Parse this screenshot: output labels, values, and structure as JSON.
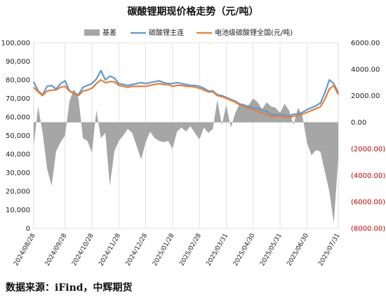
{
  "title": "碳酸锂期现价格走势（元/吨）",
  "source": "数据来源：iFind，中辉期货",
  "colors": {
    "basis": "#a6a6a6",
    "futures": "#5b9bd5",
    "spot": "#ed7d31",
    "negative_tick": "#c00000"
  },
  "chart_data": {
    "type": "line",
    "x": [
      "2024/08/28",
      "2024/09/02",
      "2024/09/06",
      "2024/09/11",
      "2024/09/16",
      "2024/09/21",
      "2024/09/26",
      "2024/09/28",
      "2024/10/03",
      "2024/10/08",
      "2024/10/13",
      "2024/10/18",
      "2024/10/23",
      "2024/10/28",
      "2024/11/02",
      "2024/11/07",
      "2024/11/12",
      "2024/11/17",
      "2024/11/22",
      "2024/11/28",
      "2024/12/03",
      "2024/12/08",
      "2024/12/13",
      "2024/12/18",
      "2024/12/23",
      "2024/12/28",
      "2025/01/02",
      "2025/01/07",
      "2025/01/12",
      "2025/01/17",
      "2025/01/22",
      "2025/01/28",
      "2025/02/02",
      "2025/02/07",
      "2025/02/12",
      "2025/02/17",
      "2025/02/22",
      "2025/02/28",
      "2025/03/05",
      "2025/03/10",
      "2025/03/15",
      "2025/03/20",
      "2025/03/25",
      "2025/03/31",
      "2025/04/05",
      "2025/04/10",
      "2025/04/15",
      "2025/04/20",
      "2025/04/25",
      "2025/04/30",
      "2025/05/05",
      "2025/05/10",
      "2025/05/15",
      "2025/05/20",
      "2025/05/25",
      "2025/05/31",
      "2025/06/05",
      "2025/06/10",
      "2025/06/15",
      "2025/06/20",
      "2025/06/25",
      "2025/06/30",
      "2025/07/05",
      "2025/07/10",
      "2025/07/15",
      "2025/07/20",
      "2025/07/25",
      "2025/07/28",
      "2025/07/31"
    ],
    "x_ticks": [
      "2024/08/28",
      "2024/09/28",
      "2024/10/28",
      "2024/11/28",
      "2024/12/28",
      "2025/01/28",
      "2025/02/28",
      "2025/03/31",
      "2025/04/30",
      "2025/05/31",
      "2025/06/30",
      "2025/07/31"
    ],
    "y_left": {
      "ticks": [
        "0",
        "10,000",
        "20,000",
        "30,000",
        "40,000",
        "50,000",
        "60,000",
        "70,000",
        "80,000",
        "90,000",
        "100,000"
      ],
      "range": [
        0,
        100000
      ]
    },
    "y_right": {
      "ticks": [
        "6000.00",
        "4000.00",
        "2000.00",
        "0.00",
        "(2000.00)",
        "(4000.00)",
        "(6000.00)",
        "(8000.00)"
      ],
      "range": [
        -8000,
        6000
      ]
    },
    "series": [
      {
        "name": "基差",
        "kind": "area",
        "axis": "right",
        "values": [
          -1800,
          1200,
          -800,
          -3500,
          -4800,
          -2200,
          -1500,
          -1000,
          1600,
          2500,
          1800,
          -1200,
          -1400,
          -2300,
          900,
          -1200,
          -800,
          -4800,
          -2200,
          -1400,
          -1000,
          -500,
          -800,
          -1800,
          -2800,
          -1500,
          -700,
          -1200,
          -1400,
          -1500,
          -1400,
          -2000,
          -700,
          -400,
          -700,
          -300,
          -800,
          -1300,
          -400,
          -800,
          -500,
          1700,
          -200,
          1300,
          -400,
          700,
          1400,
          1200,
          1300,
          1800,
          1500,
          1000,
          1500,
          1200,
          1100,
          700,
          1400,
          900,
          -200,
          1100,
          500,
          -1500,
          -2500,
          -2100,
          -2200,
          -3700,
          -5200,
          -7600,
          -2700
        ]
      },
      {
        "name": "碳酸锂主连",
        "kind": "line",
        "axis": "left",
        "values": [
          79000,
          74000,
          72000,
          76500,
          77000,
          75000,
          78000,
          79500,
          74000,
          73000,
          72000,
          76000,
          77000,
          78000,
          80500,
          85000,
          80000,
          82000,
          81000,
          78000,
          77500,
          77000,
          77500,
          78000,
          78500,
          78000,
          78500,
          79000,
          79500,
          78500,
          78000,
          78000,
          78500,
          78000,
          77500,
          77000,
          77000,
          76500,
          75500,
          74000,
          74000,
          72000,
          71500,
          70500,
          69500,
          68500,
          67000,
          66500,
          65500,
          65000,
          64500,
          63500,
          63000,
          61500,
          61000,
          61500,
          61000,
          60500,
          61500,
          61500,
          62500,
          64000,
          65000,
          66000,
          67500,
          73000,
          80000,
          78000,
          73000
        ]
      },
      {
        "name": "电池级碳酸锂全国(元/吨)",
        "kind": "line",
        "axis": "left",
        "values": [
          76000,
          73500,
          71500,
          74000,
          74500,
          74500,
          76000,
          76500,
          74000,
          72500,
          71500,
          74000,
          74500,
          75500,
          78000,
          80000,
          78500,
          79000,
          79000,
          77000,
          76500,
          76000,
          76500,
          76500,
          76500,
          76500,
          77000,
          77500,
          78000,
          77500,
          77500,
          76500,
          77000,
          77000,
          76500,
          76500,
          76000,
          75500,
          74500,
          73500,
          73500,
          71500,
          71000,
          70000,
          69000,
          68000,
          66500,
          65500,
          64500,
          64000,
          63000,
          62000,
          61500,
          60500,
          60000,
          60500,
          60000,
          59500,
          60500,
          60500,
          61500,
          62500,
          63500,
          64500,
          65500,
          69500,
          75000,
          77000,
          72000
        ]
      }
    ]
  }
}
